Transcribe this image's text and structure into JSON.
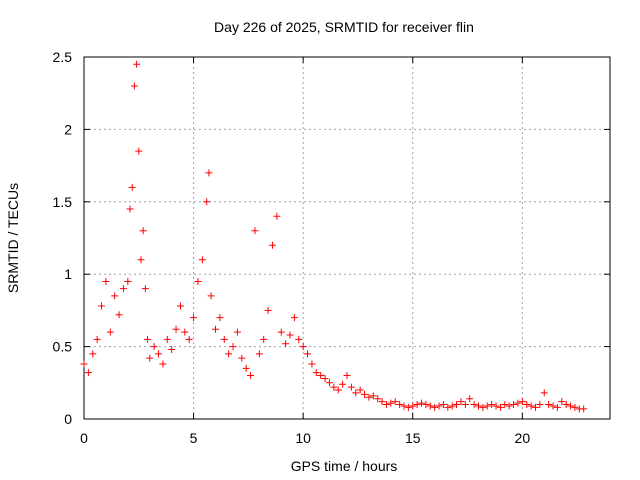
{
  "chart_data": {
    "type": "scatter",
    "title": "Day 226 of 2025, SRMTID for receiver flin",
    "xlabel": "GPS time / hours",
    "ylabel": "SRMTID / TECUs",
    "xlim": [
      0,
      24
    ],
    "ylim": [
      0,
      2.5
    ],
    "xticks": [
      0,
      5,
      10,
      15,
      20
    ],
    "xtick_labels": [
      "0",
      "5",
      "10",
      "15",
      "20"
    ],
    "yticks": [
      0,
      0.5,
      1,
      1.5,
      2,
      2.5
    ],
    "ytick_labels": [
      "0",
      "0.5",
      "1",
      "1.5",
      "2",
      "2.5"
    ],
    "grid": true,
    "marker": "+",
    "series": [
      {
        "name": "SRMTID",
        "color": "#ff0000",
        "x": [
          0.0,
          0.2,
          0.4,
          0.6,
          0.8,
          1.0,
          1.2,
          1.4,
          1.6,
          1.8,
          2.0,
          2.1,
          2.2,
          2.3,
          2.4,
          2.5,
          2.6,
          2.7,
          2.8,
          2.9,
          3.0,
          3.2,
          3.4,
          3.6,
          3.8,
          4.0,
          4.2,
          4.4,
          4.6,
          4.8,
          5.0,
          5.2,
          5.4,
          5.6,
          5.7,
          5.8,
          6.0,
          6.2,
          6.4,
          6.6,
          6.8,
          7.0,
          7.2,
          7.4,
          7.6,
          7.8,
          8.0,
          8.2,
          8.4,
          8.6,
          8.8,
          9.0,
          9.2,
          9.4,
          9.6,
          9.8,
          10.0,
          10.2,
          10.4,
          10.6,
          10.8,
          11.0,
          11.2,
          11.4,
          11.6,
          11.8,
          12.0,
          12.2,
          12.4,
          12.6,
          12.8,
          13.0,
          13.2,
          13.4,
          13.6,
          13.8,
          14.0,
          14.2,
          14.4,
          14.6,
          14.8,
          15.0,
          15.2,
          15.4,
          15.6,
          15.8,
          16.0,
          16.2,
          16.4,
          16.6,
          16.8,
          17.0,
          17.2,
          17.4,
          17.6,
          17.8,
          18.0,
          18.2,
          18.4,
          18.6,
          18.8,
          19.0,
          19.2,
          19.4,
          19.6,
          19.8,
          20.0,
          20.2,
          20.4,
          20.6,
          20.8,
          21.0,
          21.2,
          21.4,
          21.6,
          21.8,
          22.0,
          22.2,
          22.4,
          22.6,
          22.8
        ],
        "y": [
          0.38,
          0.32,
          0.45,
          0.55,
          0.78,
          0.95,
          0.6,
          0.85,
          0.72,
          0.9,
          0.95,
          1.45,
          1.6,
          2.3,
          2.45,
          1.85,
          1.1,
          1.3,
          0.9,
          0.55,
          0.42,
          0.5,
          0.45,
          0.38,
          0.55,
          0.48,
          0.62,
          0.78,
          0.6,
          0.55,
          0.7,
          0.95,
          1.1,
          1.5,
          1.7,
          0.85,
          0.62,
          0.7,
          0.55,
          0.45,
          0.5,
          0.6,
          0.42,
          0.35,
          0.3,
          1.3,
          0.45,
          0.55,
          0.75,
          1.2,
          1.4,
          0.6,
          0.52,
          0.58,
          0.7,
          0.55,
          0.5,
          0.45,
          0.38,
          0.32,
          0.3,
          0.28,
          0.25,
          0.22,
          0.2,
          0.24,
          0.3,
          0.22,
          0.18,
          0.2,
          0.17,
          0.15,
          0.16,
          0.14,
          0.12,
          0.1,
          0.11,
          0.12,
          0.1,
          0.09,
          0.08,
          0.09,
          0.1,
          0.11,
          0.1,
          0.09,
          0.08,
          0.09,
          0.1,
          0.08,
          0.09,
          0.1,
          0.12,
          0.1,
          0.14,
          0.1,
          0.09,
          0.08,
          0.09,
          0.1,
          0.09,
          0.08,
          0.1,
          0.09,
          0.1,
          0.11,
          0.12,
          0.1,
          0.09,
          0.08,
          0.1,
          0.18,
          0.1,
          0.09,
          0.08,
          0.12,
          0.1,
          0.09,
          0.08,
          0.07,
          0.07
        ]
      }
    ]
  }
}
